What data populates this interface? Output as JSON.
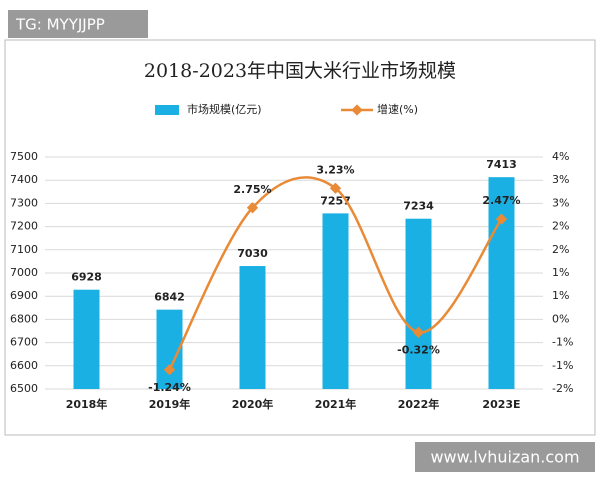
{
  "watermark_top": "TG: MYYJJPP",
  "watermark_bottom": "www.lvhuizan.com",
  "chart_data": {
    "type": "bar-line",
    "title": "2018-2023年中国大米行业市场规模",
    "categories": [
      "2018年",
      "2019年",
      "2020年",
      "2021年",
      "2022年",
      "2023E"
    ],
    "series": [
      {
        "name": "市场规模(亿元)",
        "type": "bar",
        "color": "#1bb0e3",
        "values": [
          6928,
          6842,
          7030,
          7257,
          7234,
          7413
        ]
      },
      {
        "name": "增速(%)",
        "type": "line",
        "axis": "y2",
        "color": "#e98a37",
        "values": [
          null,
          -1.24,
          2.75,
          3.23,
          -0.32,
          2.47
        ],
        "value_labels": [
          null,
          "-1.24%",
          "2.75%",
          "3.23%",
          "-0.32%",
          "2.47%"
        ]
      }
    ],
    "ylim": [
      6500,
      7500
    ],
    "yticks": [
      6500,
      6600,
      6700,
      6800,
      6900,
      7000,
      7100,
      7200,
      7300,
      7400,
      7500
    ],
    "y2lim": [
      -1.714,
      4
    ],
    "y2ticks": [
      {
        "value": -1.714,
        "label": "-2%"
      },
      {
        "value": -1.143,
        "label": "-1%"
      },
      {
        "value": -0.571,
        "label": "-1%"
      },
      {
        "value": 0,
        "label": "0%"
      },
      {
        "value": 0.571,
        "label": "1%"
      },
      {
        "value": 1.143,
        "label": "1%"
      },
      {
        "value": 1.714,
        "label": "2%"
      },
      {
        "value": 2.286,
        "label": "2%"
      },
      {
        "value": 2.857,
        "label": "3%"
      },
      {
        "value": 3.429,
        "label": "3%"
      },
      {
        "value": 4,
        "label": "4%"
      }
    ],
    "grid": true
  }
}
